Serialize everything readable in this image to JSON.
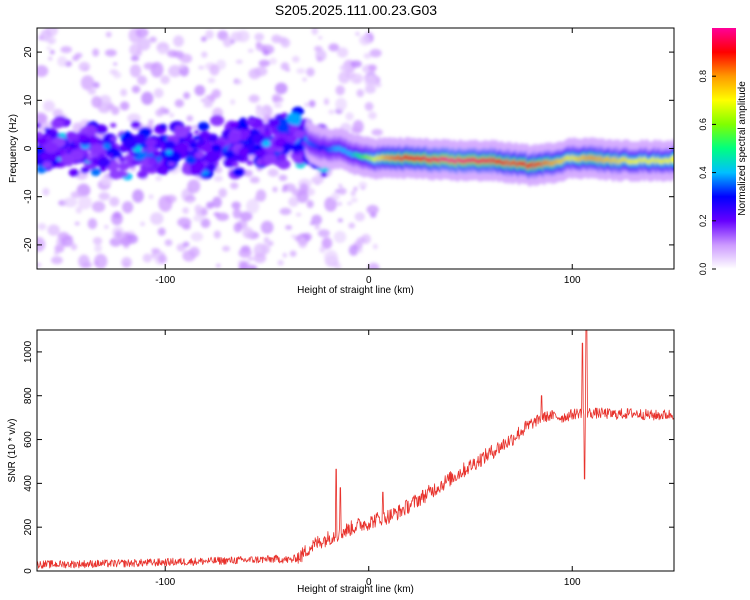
{
  "title": "S205.2025.111.00.23.G03",
  "chart_data": [
    {
      "type": "heatmap",
      "xlabel": "Height of straight line (km)",
      "ylabel": "Frequency (Hz)",
      "xlim": [
        -163,
        150
      ],
      "ylim": [
        -25,
        25
      ],
      "xticks": [
        -100,
        0,
        100
      ],
      "yticks": [
        20,
        10,
        0,
        -10,
        -20
      ],
      "colorbar": {
        "label": "Normalized spectral amplitude",
        "range": [
          0,
          1
        ],
        "ticks": [
          "0.0",
          "0.2",
          "0.4",
          "0.6",
          "0.8"
        ],
        "colors": [
          "#ffffff",
          "#cc99ff",
          "#6600ff",
          "#0000ff",
          "#00bfff",
          "#00ff80",
          "#80ff00",
          "#ffff00",
          "#ff9900",
          "#ff0000",
          "#ff0099"
        ]
      },
      "ridge": {
        "x": [
          -160,
          -140,
          -120,
          -100,
          -80,
          -60,
          -45,
          -38,
          -33,
          -28,
          -22,
          -15,
          -8,
          0,
          10,
          20,
          40,
          60,
          70,
          80,
          90,
          100,
          110,
          120,
          130,
          140,
          150
        ],
        "freq": [
          0,
          0,
          -1,
          0,
          -0.5,
          0.5,
          1.5,
          3,
          3,
          1,
          0,
          0,
          -1,
          -2,
          -2,
          -2,
          -2.5,
          -2.5,
          -3,
          -3.5,
          -3,
          -2,
          -2,
          -2.5,
          -2.5,
          -2.5,
          -2.5
        ],
        "amplitude": [
          0.15,
          0.2,
          0.2,
          0.2,
          0.25,
          0.25,
          0.3,
          0.4,
          0.45,
          0.35,
          0.3,
          0.4,
          0.4,
          0.6,
          0.8,
          0.9,
          1.0,
          0.95,
          0.85,
          0.9,
          0.8,
          0.7,
          0.8,
          0.75,
          0.7,
          0.7,
          0.7
        ]
      }
    },
    {
      "type": "line",
      "xlabel": "Height of straight line (km)",
      "ylabel": "SNR (10 * v/v)",
      "xlim": [
        -163,
        150
      ],
      "ylim": [
        0,
        1100
      ],
      "xticks": [
        -100,
        0,
        100
      ],
      "yticks": [
        0,
        200,
        400,
        600,
        800,
        1000
      ],
      "color": "#e8322c",
      "series": [
        {
          "x": [
            -163,
            -140,
            -120,
            -100,
            -80,
            -60,
            -45,
            -38,
            -33,
            -30,
            -25,
            -20,
            -15,
            -10,
            -5,
            0,
            5,
            10,
            15,
            20,
            25,
            30,
            35,
            40,
            45,
            50,
            55,
            60,
            65,
            70,
            75,
            80,
            85,
            90,
            95,
            100,
            105,
            110,
            115,
            120,
            130,
            140,
            150
          ],
          "y": [
            30,
            32,
            35,
            40,
            45,
            50,
            55,
            50,
            70,
            100,
            130,
            150,
            170,
            190,
            210,
            220,
            240,
            250,
            270,
            300,
            330,
            360,
            390,
            420,
            450,
            480,
            510,
            540,
            570,
            600,
            640,
            670,
            700,
            710,
            700,
            715,
            725,
            720,
            720,
            715,
            720,
            710,
            715
          ]
        }
      ],
      "spikes": [
        {
          "x": -16,
          "y": 465
        },
        {
          "x": -14,
          "y": 380
        },
        {
          "x": 7,
          "y": 360
        },
        {
          "x": 85,
          "y": 800
        },
        {
          "x": 105,
          "y": 1040
        },
        {
          "x": 107,
          "y": 1100
        },
        {
          "x": 106,
          "y": 420
        }
      ]
    }
  ]
}
